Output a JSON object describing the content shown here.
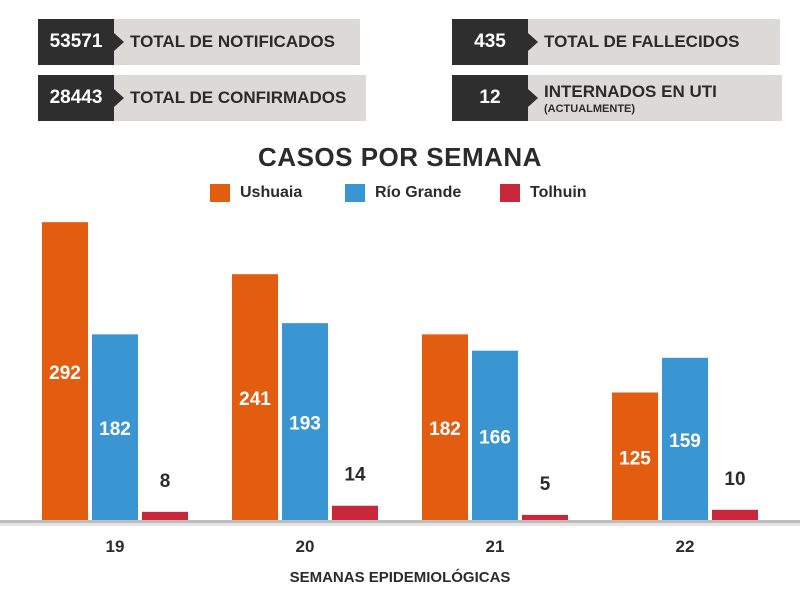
{
  "stats": {
    "notificados": {
      "value": "53571",
      "label": "TOTAL DE NOTIFICADOS"
    },
    "confirmados": {
      "value": "28443",
      "label": "TOTAL DE CONFIRMADOS"
    },
    "fallecidos": {
      "value": "435",
      "label": "TOTAL DE FALLECIDOS"
    },
    "uti": {
      "value": "12",
      "label": "INTERNADOS EN UTI",
      "sublabel": "(ACTUALMENTE)"
    }
  },
  "chart_data": {
    "type": "bar",
    "title": "CASOS POR SEMANA",
    "xlabel": "SEMANAS EPIDEMIOLÓGICAS",
    "ylabel": "",
    "categories": [
      "19",
      "20",
      "21",
      "22"
    ],
    "series": [
      {
        "name": "Ushuaia",
        "color": "#e35d10",
        "values": [
          292,
          241,
          182,
          125
        ]
      },
      {
        "name": "Río Grande",
        "color": "#3a96d2",
        "values": [
          182,
          193,
          166,
          159
        ]
      },
      {
        "name": "Tolhuin",
        "color": "#c8283a",
        "values": [
          8,
          14,
          5,
          10
        ]
      }
    ],
    "ylim": [
      0,
      300
    ],
    "grid": false,
    "legend": "top-center"
  }
}
